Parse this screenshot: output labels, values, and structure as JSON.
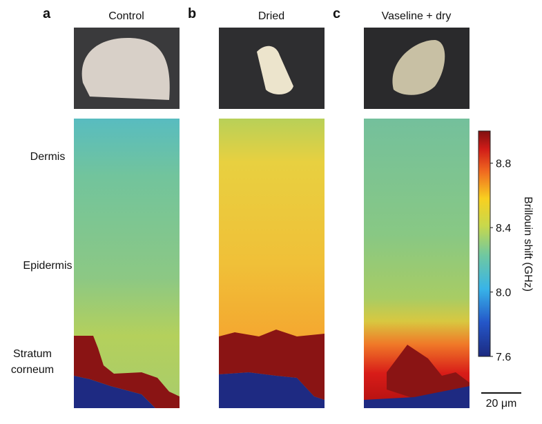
{
  "panels": [
    {
      "letter": "a",
      "title": "Control"
    },
    {
      "letter": "b",
      "title": "Dried"
    },
    {
      "letter": "c",
      "title": "Vaseline + dry"
    }
  ],
  "row_labels": [
    "Dermis",
    "Epidermis",
    "Stratum corneum"
  ],
  "colorbar": {
    "label": "Brillouin shift (GHz)",
    "lim": [
      7.6,
      9.0
    ],
    "ticks": [
      7.6,
      {
        "value": 8,
        "label": "8.0"
      },
      8.4,
      8.8
    ]
  },
  "scale_bar": "20 μm"
}
